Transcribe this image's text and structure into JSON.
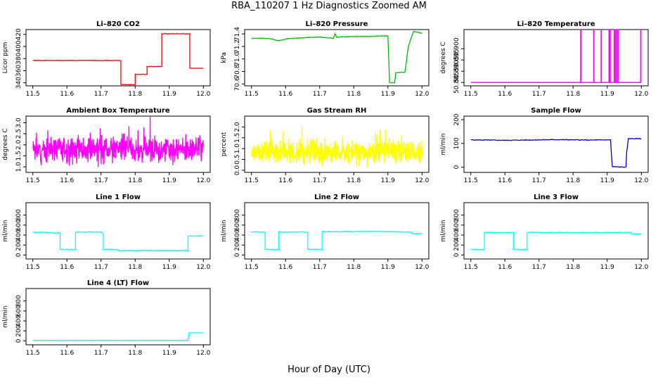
{
  "page_title": "RBA_110207  1 Hz Diagnostics Zoomed AM",
  "x_axis_label": "Hour of Day (UTC)",
  "colors": {
    "red": "#ff0000",
    "green": "#00bb00",
    "magenta": "#ff00ff",
    "yellow": "#ffff00",
    "blue": "#0000cc",
    "cyan": "#00ffff"
  },
  "chart_data": [
    {
      "type": "line",
      "title": "Li–820 CO2",
      "ylabel": "Licor ppm",
      "color": "#ff0000",
      "xlim": [
        11.48,
        12.02
      ],
      "ylim": [
        335,
        428
      ],
      "xticks": [
        "11.5",
        "11.6",
        "11.7",
        "11.8",
        "11.9",
        "12.0"
      ],
      "yticks": [
        "340",
        "360",
        "380",
        "400",
        "420"
      ],
      "noise": 0.4,
      "seed": 1,
      "x": [
        11.5,
        11.758,
        11.758,
        11.8,
        11.8,
        11.835,
        11.835,
        11.878,
        11.878,
        11.96,
        11.96,
        12.0
      ],
      "y": [
        377,
        377,
        337,
        337,
        354,
        354,
        367,
        367,
        421,
        421,
        364,
        364
      ]
    },
    {
      "type": "line",
      "title": "Li–820 Pressure",
      "ylabel": "kPa",
      "color": "#00bb00",
      "xlim": [
        11.48,
        12.02
      ],
      "ylim": [
        70.57,
        71.47
      ],
      "xticks": [
        "11.5",
        "11.6",
        "11.7",
        "11.8",
        "11.9",
        "12.0"
      ],
      "yticks": [
        "70.6",
        "70.8",
        "71.0",
        "71.2",
        "71.4"
      ],
      "noise": 0.004,
      "seed": 2,
      "x": [
        11.5,
        11.55,
        11.58,
        11.6,
        11.65,
        11.7,
        11.74,
        11.745,
        11.75,
        11.8,
        11.85,
        11.9,
        11.905,
        11.907,
        11.92,
        11.923,
        11.95,
        11.96,
        11.975,
        12.0
      ],
      "y": [
        71.33,
        71.33,
        71.29,
        71.32,
        71.34,
        71.35,
        71.33,
        71.4,
        71.35,
        71.36,
        71.36,
        71.37,
        70.62,
        70.62,
        70.62,
        70.78,
        70.79,
        71.2,
        71.44,
        71.41
      ]
    },
    {
      "type": "line",
      "title": "Li–820 Temperature",
      "ylabel": "degrees C",
      "color": "#ff00ff",
      "xlim": [
        11.48,
        12.02
      ],
      "ylim": [
        50.8835,
        50.9085
      ],
      "xticks": [
        "11.5",
        "11.6",
        "11.7",
        "11.8",
        "11.9",
        "12.0"
      ],
      "yticks": [
        "50.885",
        "50.890",
        "50.895",
        "50.900"
      ],
      "base": 50.885,
      "spike_to": 50.9085,
      "spikes": [
        11.822,
        11.86,
        11.882,
        11.905,
        11.908,
        11.92,
        11.924,
        11.928,
        11.932,
        11.998
      ]
    },
    {
      "type": "line",
      "title": "Ambient Box Temperature",
      "ylabel": "degrees C",
      "color": "#ff00ff",
      "xlim": [
        11.48,
        12.02
      ],
      "ylim": [
        0.75,
        3.3
      ],
      "xticks": [
        "11.5",
        "11.6",
        "11.7",
        "11.8",
        "11.9",
        "12.0"
      ],
      "yticks": [
        "1.0",
        "1.5",
        "2.0",
        "2.5",
        "3.0"
      ],
      "noise_series": {
        "mean": 1.8,
        "spread": 0.35,
        "min": 0.75,
        "max": 3.3,
        "count": 700,
        "seed": 3
      }
    },
    {
      "type": "line",
      "title": "Gas Stream RH",
      "ylabel": "percent",
      "color": "#ffff00",
      "xlim": [
        11.48,
        12.02
      ],
      "ylim": [
        -0.1,
        2.5
      ],
      "xticks": [
        "11.5",
        "11.6",
        "11.7",
        "11.8",
        "11.9",
        "12.0"
      ],
      "yticks": [
        "0.0",
        "0.5",
        "1.0",
        "1.5",
        "2.0"
      ],
      "noise_series": {
        "mean": 0.85,
        "spread": 0.35,
        "min": 0.0,
        "max": 2.45,
        "count": 700,
        "seed": 4
      }
    },
    {
      "type": "line",
      "title": "Sample Flow",
      "ylabel": "ml/min",
      "color": "#0000cc",
      "xlim": [
        11.48,
        12.02
      ],
      "ylim": [
        -22,
        215
      ],
      "xticks": [
        "11.5",
        "11.6",
        "11.7",
        "11.8",
        "11.9",
        "12.0"
      ],
      "yticks": [
        "0",
        "100",
        "200"
      ],
      "noise": 1.5,
      "seed": 5,
      "x": [
        11.5,
        11.6,
        11.75,
        11.85,
        11.91,
        11.912,
        11.915,
        11.955,
        11.957,
        11.962,
        12.0
      ],
      "y": [
        115,
        113,
        116,
        114,
        115,
        60,
        2,
        0,
        60,
        120,
        120
      ]
    },
    {
      "type": "line",
      "title": "Line 1 Flow",
      "ylabel": "ml/min",
      "color": "#00ffff",
      "xlim": [
        11.48,
        12.02
      ],
      "ylim": [
        -80,
        1050
      ],
      "xticks": [
        "11.5",
        "11.6",
        "11.7",
        "11.8",
        "11.9",
        "12.0"
      ],
      "yticks": [
        "0",
        "200",
        "400",
        "600",
        "800"
      ],
      "noise": 8,
      "seed": 6,
      "x": [
        11.5,
        11.57,
        11.58,
        11.58,
        11.625,
        11.625,
        11.7,
        11.707,
        11.707,
        11.75,
        11.75,
        11.955,
        11.955,
        12.0
      ],
      "y": [
        460,
        440,
        450,
        110,
        110,
        460,
        460,
        420,
        110,
        110,
        90,
        90,
        380,
        380
      ]
    },
    {
      "type": "line",
      "title": "Line 2 Flow",
      "ylabel": "ml/min",
      "color": "#00ffff",
      "xlim": [
        11.48,
        12.02
      ],
      "ylim": [
        -80,
        1050
      ],
      "xticks": [
        "11.5",
        "11.6",
        "11.7",
        "11.8",
        "11.9",
        "12.0"
      ],
      "yticks": [
        "0",
        "200",
        "400",
        "600",
        "800"
      ],
      "noise": 8,
      "seed": 7,
      "x": [
        11.5,
        11.54,
        11.54,
        11.58,
        11.58,
        11.665,
        11.665,
        11.707,
        11.707,
        11.8,
        11.9,
        11.97,
        11.97,
        12.0
      ],
      "y": [
        465,
        460,
        110,
        110,
        460,
        460,
        110,
        110,
        470,
        470,
        470,
        460,
        430,
        430
      ]
    },
    {
      "type": "line",
      "title": "Line 3 Flow",
      "ylabel": "ml/min",
      "color": "#00ffff",
      "xlim": [
        11.48,
        12.02
      ],
      "ylim": [
        -80,
        1050
      ],
      "xticks": [
        "11.5",
        "11.6",
        "11.7",
        "11.8",
        "11.9",
        "12.0"
      ],
      "yticks": [
        "0",
        "200",
        "400",
        "600",
        "800"
      ],
      "noise": 8,
      "seed": 8,
      "x": [
        11.5,
        11.54,
        11.54,
        11.625,
        11.625,
        11.665,
        11.665,
        11.8,
        11.9,
        11.97,
        11.97,
        12.0
      ],
      "y": [
        110,
        110,
        450,
        450,
        110,
        110,
        450,
        450,
        450,
        450,
        420,
        420
      ]
    },
    {
      "type": "line",
      "title": "Line 4 (LT) Flow",
      "ylabel": "ml/min",
      "color": "#00ffff",
      "xlim": [
        11.48,
        12.02
      ],
      "ylim": [
        -80,
        1050
      ],
      "xticks": [
        "11.5",
        "11.6",
        "11.7",
        "11.8",
        "11.9",
        "12.0"
      ],
      "yticks": [
        "0",
        "200",
        "400",
        "600",
        "800"
      ],
      "noise": 1,
      "seed": 9,
      "x": [
        11.5,
        11.955,
        11.958,
        12.0
      ],
      "y": [
        8,
        8,
        160,
        160
      ]
    }
  ]
}
